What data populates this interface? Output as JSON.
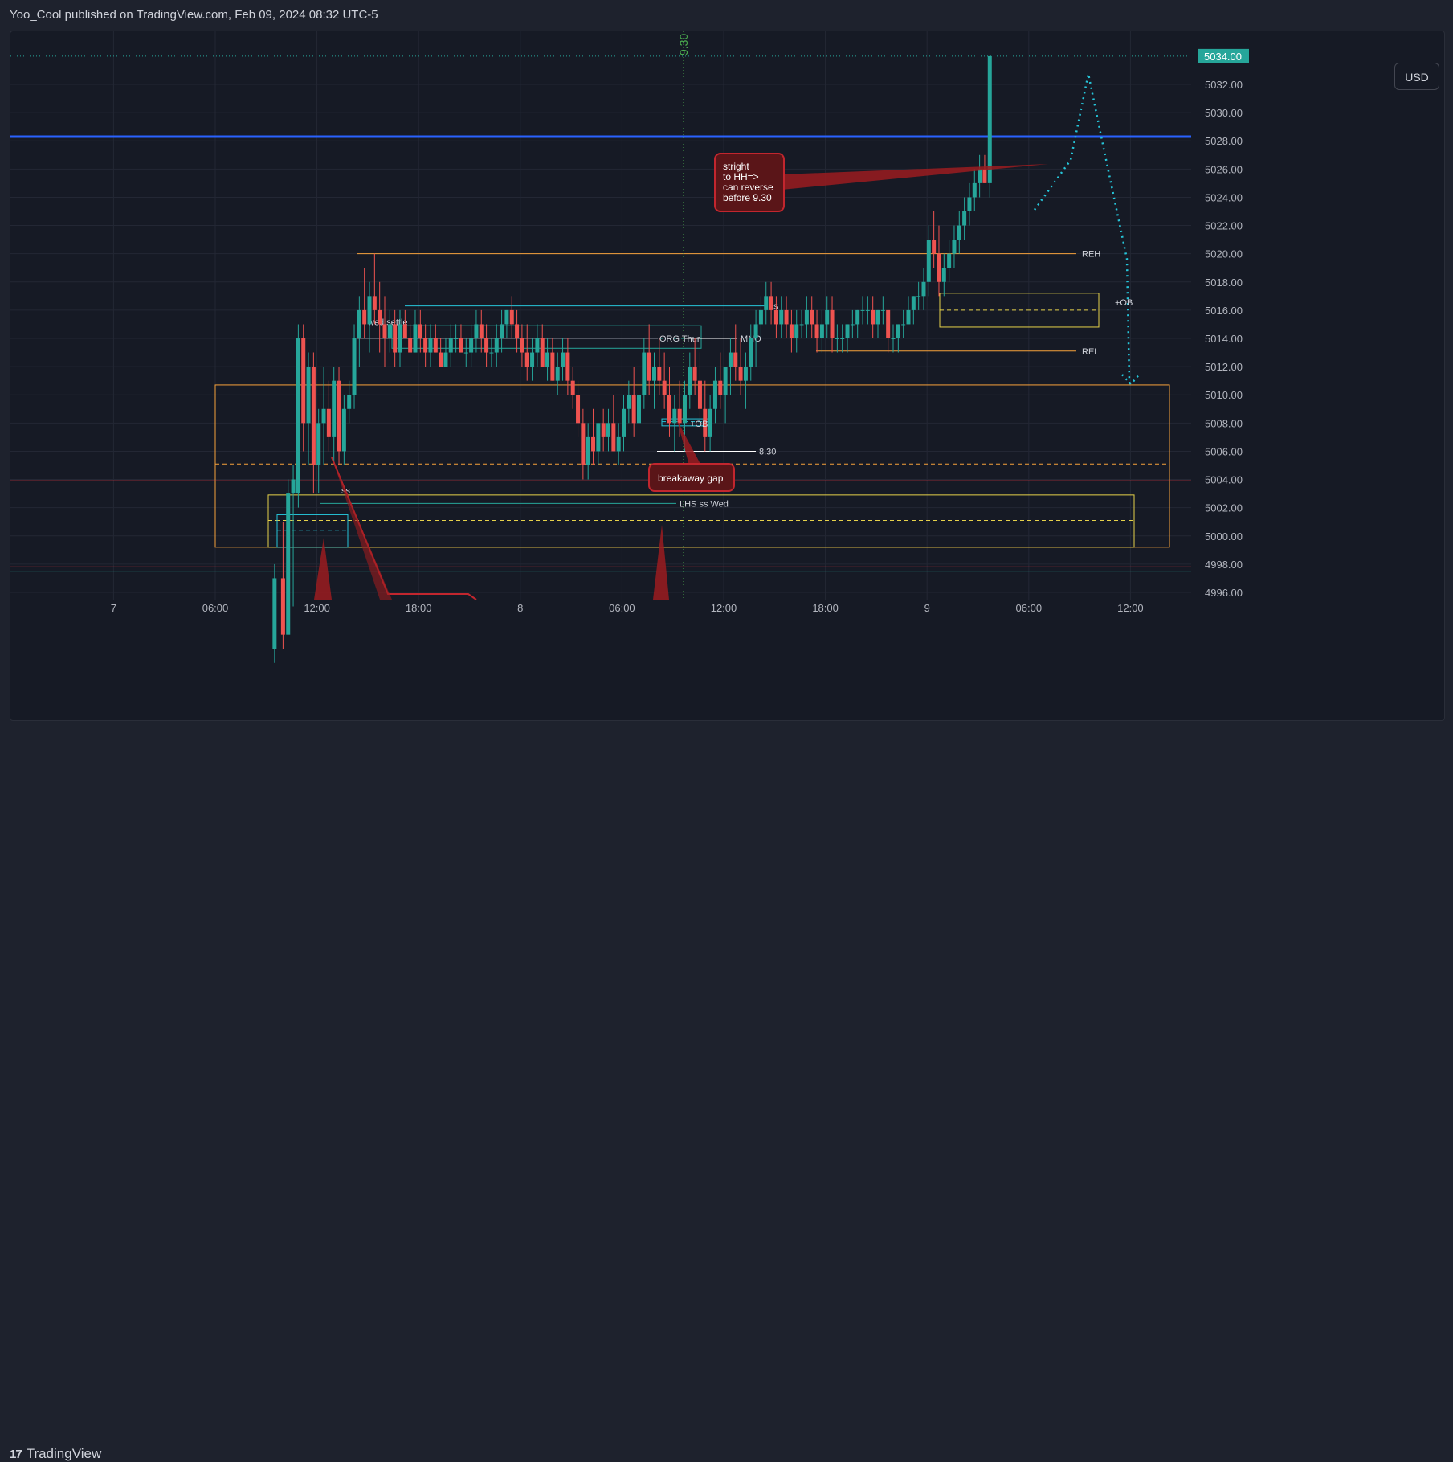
{
  "header": {
    "publisher_text": "Yoo_Cool published on TradingView.com, Feb 09, 2024 08:32 UTC-5"
  },
  "currency_button": "USD",
  "footer": {
    "brand": "TradingView",
    "logo_mark": "17"
  },
  "colors": {
    "up": "#26a69a",
    "down": "#ef5350",
    "blue_line": "#2962ff",
    "orange": "#f7a23b",
    "yellow": "#e6d24a",
    "cyan": "#26c6da",
    "red_line": "#f23645"
  },
  "chart_data": {
    "type": "candlestick",
    "symbol_hint": "",
    "y_axis": {
      "min": 4996,
      "max": 5034,
      "ticks": [
        "4996.00",
        "4998.00",
        "5000.00",
        "5002.00",
        "5004.00",
        "5006.00",
        "5008.00",
        "5010.00",
        "5012.00",
        "5014.00",
        "5016.00",
        "5018.00",
        "5020.00",
        "5022.00",
        "5024.00",
        "5026.00",
        "5028.00",
        "5030.00",
        "5032.00"
      ],
      "tick_values": [
        4996,
        4998,
        5000,
        5002,
        5004,
        5006,
        5008,
        5010,
        5012,
        5014,
        5016,
        5018,
        5020,
        5022,
        5024,
        5026,
        5028,
        5030,
        5032
      ],
      "last_price_label": "5034.00",
      "last_price": 5034
    },
    "x_axis": {
      "ticks": [
        "7",
        "06:00",
        "12:00",
        "18:00",
        "8",
        "06:00",
        "12:00",
        "18:00",
        "9",
        "06:00",
        "12:00"
      ],
      "tick_hours": [
        0,
        6,
        12,
        18,
        24,
        30,
        36,
        42,
        48,
        54,
        60
      ],
      "start_hour": -6,
      "end_hour": 63.3
    },
    "horizontal_lines": [
      {
        "name": "blue-level",
        "value": 5028.3,
        "color": "#2962ff",
        "style": "solid"
      },
      {
        "name": "red-level-upper",
        "value": 5003.9,
        "color": "#f23645",
        "style": "solid"
      },
      {
        "name": "red-level-lower",
        "value": 4997.8,
        "color": "#f23645",
        "style": "solid"
      },
      {
        "name": "green-level",
        "value": 4997.5,
        "color": "#26a69a",
        "style": "solid"
      },
      {
        "name": "last-price-dotted",
        "value": 5034,
        "color": "#26a69a",
        "style": "dotted"
      }
    ],
    "level_lines": [
      {
        "label": "REH",
        "value": 5020,
        "x_from": 8.0,
        "x_to": 57.2,
        "color": "#f7a23b"
      },
      {
        "label": "REL",
        "value": 5013.1,
        "x_from": 40.0,
        "x_to": 57.2,
        "color": "#f7a23b"
      },
      {
        "label": "bs",
        "value": 5016.3,
        "x_from": 17.8,
        "x_to": 35.0,
        "color": "#26c6da"
      },
      {
        "label": "MNO",
        "value": 5014,
        "x_from": 31.0,
        "x_to": 36.6,
        "color": "#ffffff"
      },
      {
        "label": "ORG Thur",
        "value": 5014,
        "x_from": 15.0,
        "x_to": 30.7,
        "color": "#8a8f9c"
      },
      {
        "label": "8.30",
        "value": 5006,
        "x_from": 32.6,
        "x_to": 37.9,
        "color": "#ffffff"
      },
      {
        "label": "LHS ss Wed",
        "value": 5002.3,
        "x_from": 11.3,
        "x_to": 31.3,
        "color": "#26a69a"
      },
      {
        "label": "wed settle",
        "value": 5014.6,
        "x_from": 16.6,
        "x_to": 35.1,
        "color": "#26a69a"
      },
      {
        "label": "ss",
        "value": 5002.9,
        "x_from": 11.9,
        "x_to": 12.1,
        "color": "#ffffff"
      }
    ],
    "zones": [
      {
        "name": "orange-zone",
        "top": 5010.7,
        "bottom": 4999.2,
        "x_from": 0.0,
        "x_to": 63.0,
        "color": "#f7a23b",
        "mid": 5005.1
      },
      {
        "name": "yellow-zone-big",
        "top": 5002.9,
        "bottom": 4999.2,
        "x_from": 3.0,
        "x_to": 61.0,
        "color": "#e6d24a",
        "mid": 5001.1
      },
      {
        "name": "yellow-zone-ob",
        "top": 5017.2,
        "bottom": 5014.8,
        "x_from": 50.5,
        "x_to": 59.5,
        "color": "#e6d24a",
        "mid": 5016.0
      },
      {
        "name": "cyan-zone-small",
        "top": 5001.5,
        "bottom": 4999.2,
        "x_from": 3.5,
        "x_to": 7.5,
        "color": "#26c6da",
        "mid": 5000.4
      },
      {
        "name": "cyan-zone-ob",
        "top": 5008.3,
        "bottom": 5007.8,
        "x_from": 32.9,
        "x_to": 34.9,
        "color": "#26c6da",
        "mid": 5008.1
      },
      {
        "name": "wed-settle-box",
        "top": 5014.9,
        "bottom": 5013.3,
        "x_from": 15.6,
        "x_to": 36.8,
        "color": "#26a69a",
        "mid": 5014.0
      }
    ],
    "annotations": [
      {
        "name": "stright-note",
        "text_lines": [
          "stright",
          "to HH=>",
          "can reverse",
          "before 9.30"
        ]
      },
      {
        "name": "breakaway-gap-note",
        "text_lines": [
          "breakaway gap"
        ]
      },
      {
        "name": "ob-label-1",
        "text_lines": [
          "+OB"
        ]
      },
      {
        "name": "ob-label-2",
        "text_lines": [
          "+OB"
        ]
      },
      {
        "name": "time-marker",
        "text_lines": [
          "9.30"
        ],
        "hour": 33.5
      }
    ],
    "projection_path": [
      [
        55.5,
        5024
      ],
      [
        57.1,
        5026
      ],
      [
        58.3,
        5032.8
      ],
      [
        59.8,
        5020
      ],
      [
        61.0,
        5011.2
      ],
      [
        61.3,
        5011.2
      ]
    ],
    "candles": [
      [
        9.5,
        4992,
        4998,
        4991,
        4997
      ],
      [
        10.0,
        4997,
        5001,
        4992,
        4993
      ],
      [
        10.3,
        4993,
        5004,
        4993,
        5003
      ],
      [
        10.6,
        5003,
        5005,
        4995,
        5004
      ],
      [
        10.9,
        5003,
        5015,
        5002,
        5014
      ],
      [
        11.2,
        5014,
        5015,
        5006,
        5008
      ],
      [
        11.5,
        5008,
        5013,
        5005,
        5012
      ],
      [
        11.8,
        5012,
        5013,
        5003,
        5005
      ],
      [
        12.1,
        5005,
        5009,
        5003,
        5008
      ],
      [
        12.4,
        5008,
        5012,
        5005,
        5009
      ],
      [
        12.7,
        5009,
        5011,
        5006,
        5007
      ],
      [
        13.0,
        5007,
        5012,
        5005,
        5011
      ],
      [
        13.3,
        5011,
        5012,
        5005,
        5006
      ],
      [
        13.6,
        5006,
        5010,
        5005,
        5009
      ],
      [
        13.9,
        5009,
        5011,
        5008,
        5010
      ],
      [
        14.2,
        5010,
        5015,
        5009,
        5014
      ],
      [
        14.5,
        5014,
        5017,
        5012,
        5016
      ],
      [
        14.8,
        5016,
        5019,
        5014,
        5015
      ],
      [
        15.1,
        5015,
        5018,
        5013,
        5017
      ],
      [
        15.4,
        5017,
        5020,
        5015,
        5016
      ],
      [
        15.7,
        5016,
        5018,
        5013,
        5015
      ],
      [
        16.0,
        5015,
        5017,
        5012,
        5014
      ],
      [
        16.3,
        5014,
        5016,
        5013,
        5015
      ],
      [
        16.6,
        5015,
        5016,
        5012,
        5013
      ],
      [
        16.9,
        5013,
        5016,
        5012,
        5015
      ],
      [
        17.2,
        5015,
        5016,
        5014,
        5014
      ],
      [
        17.5,
        5014,
        5015,
        5013,
        5013
      ],
      [
        17.8,
        5013,
        5016,
        5013,
        5015
      ],
      [
        18.1,
        5015,
        5016,
        5013,
        5014
      ],
      [
        18.4,
        5014,
        5015,
        5012,
        5013
      ],
      [
        18.7,
        5013,
        5015,
        5012,
        5014
      ],
      [
        19.0,
        5014,
        5015,
        5013,
        5013
      ],
      [
        19.3,
        5013,
        5014,
        5012,
        5012
      ],
      [
        19.6,
        5012,
        5014,
        5012,
        5013
      ],
      [
        19.9,
        5013,
        5015,
        5012,
        5014
      ],
      [
        20.2,
        5014,
        5015,
        5013,
        5014
      ],
      [
        20.5,
        5014,
        5015,
        5013,
        5013
      ],
      [
        20.8,
        5013,
        5014,
        5012,
        5013
      ],
      [
        21.1,
        5013,
        5015,
        5012,
        5014
      ],
      [
        21.4,
        5014,
        5016,
        5013,
        5015
      ],
      [
        21.7,
        5015,
        5016,
        5013,
        5014
      ],
      [
        22.0,
        5014,
        5015,
        5012,
        5013
      ],
      [
        22.3,
        5013,
        5014,
        5012,
        5013
      ],
      [
        22.6,
        5013,
        5015,
        5012,
        5014
      ],
      [
        22.9,
        5014,
        5016,
        5013,
        5015
      ],
      [
        23.2,
        5015,
        5016,
        5014,
        5016
      ],
      [
        23.5,
        5016,
        5017,
        5014,
        5015
      ],
      [
        23.8,
        5015,
        5016,
        5013,
        5014
      ],
      [
        24.1,
        5014,
        5015,
        5012,
        5013
      ],
      [
        24.4,
        5013,
        5015,
        5011,
        5012
      ],
      [
        24.7,
        5012,
        5014,
        5011,
        5013
      ],
      [
        25.0,
        5013,
        5015,
        5012,
        5014
      ],
      [
        25.3,
        5014,
        5015,
        5012,
        5012
      ],
      [
        25.6,
        5012,
        5014,
        5011,
        5013
      ],
      [
        25.9,
        5013,
        5014,
        5011,
        5011
      ],
      [
        26.2,
        5011,
        5013,
        5010,
        5012
      ],
      [
        26.5,
        5012,
        5014,
        5011,
        5013
      ],
      [
        26.8,
        5013,
        5014,
        5010,
        5011
      ],
      [
        27.1,
        5011,
        5012,
        5009,
        5010
      ],
      [
        27.4,
        5010,
        5011,
        5007,
        5008
      ],
      [
        27.7,
        5008,
        5009,
        5004,
        5005
      ],
      [
        28.0,
        5005,
        5008,
        5004,
        5007
      ],
      [
        28.3,
        5007,
        5009,
        5005,
        5006
      ],
      [
        28.6,
        5006,
        5008,
        5005,
        5008
      ],
      [
        28.9,
        5008,
        5009,
        5006,
        5007
      ],
      [
        29.2,
        5007,
        5009,
        5006,
        5008
      ],
      [
        29.5,
        5008,
        5010,
        5006,
        5006
      ],
      [
        29.8,
        5006,
        5008,
        5005,
        5007
      ],
      [
        30.1,
        5007,
        5010,
        5006,
        5009
      ],
      [
        30.4,
        5009,
        5011,
        5008,
        5010
      ],
      [
        30.7,
        5010,
        5012,
        5007,
        5008
      ],
      [
        31.0,
        5008,
        5011,
        5007,
        5010
      ],
      [
        31.3,
        5010,
        5014,
        5009,
        5013
      ],
      [
        31.6,
        5013,
        5015,
        5010,
        5011
      ],
      [
        31.9,
        5011,
        5013,
        5009,
        5012
      ],
      [
        32.2,
        5012,
        5014,
        5010,
        5011
      ],
      [
        32.5,
        5011,
        5013,
        5009,
        5010
      ],
      [
        32.8,
        5010,
        5012,
        5007,
        5008
      ],
      [
        33.1,
        5008,
        5010,
        5006,
        5009
      ],
      [
        33.4,
        5009,
        5011,
        5007,
        5008
      ],
      [
        33.7,
        5008,
        5011,
        5006,
        5010
      ],
      [
        34.0,
        5010,
        5013,
        5009,
        5012
      ],
      [
        34.3,
        5012,
        5014,
        5010,
        5011
      ],
      [
        34.6,
        5011,
        5013,
        5008,
        5009
      ],
      [
        34.9,
        5009,
        5011,
        5006,
        5007
      ],
      [
        35.2,
        5007,
        5010,
        5006,
        5009
      ],
      [
        35.5,
        5009,
        5012,
        5008,
        5011
      ],
      [
        35.8,
        5011,
        5013,
        5009,
        5010
      ],
      [
        36.1,
        5010,
        5012,
        5008,
        5012
      ],
      [
        36.4,
        5012,
        5014,
        5010,
        5013
      ],
      [
        36.7,
        5013,
        5015,
        5011,
        5012
      ],
      [
        37.0,
        5012,
        5014,
        5010,
        5011
      ],
      [
        37.3,
        5011,
        5013,
        5009,
        5012
      ],
      [
        37.6,
        5012,
        5015,
        5011,
        5014
      ],
      [
        37.9,
        5014,
        5016,
        5012,
        5015
      ],
      [
        38.2,
        5015,
        5017,
        5014,
        5016
      ],
      [
        38.5,
        5016,
        5018,
        5015,
        5017
      ],
      [
        38.8,
        5017,
        5018,
        5015,
        5016
      ],
      [
        39.1,
        5016,
        5017,
        5014,
        5015
      ],
      [
        39.4,
        5015,
        5017,
        5014,
        5016
      ],
      [
        39.7,
        5016,
        5017,
        5014,
        5015
      ],
      [
        40.0,
        5015,
        5016,
        5013,
        5014
      ],
      [
        40.3,
        5014,
        5016,
        5013,
        5015
      ],
      [
        40.6,
        5015,
        5016,
        5014,
        5015
      ],
      [
        40.9,
        5015,
        5017,
        5014,
        5016
      ],
      [
        41.2,
        5016,
        5017,
        5014,
        5015
      ],
      [
        41.5,
        5015,
        5016,
        5013,
        5014
      ],
      [
        41.8,
        5014,
        5016,
        5013,
        5015
      ],
      [
        42.1,
        5015,
        5017,
        5014,
        5016
      ],
      [
        42.4,
        5016,
        5017,
        5013,
        5014
      ],
      [
        42.7,
        5014,
        5015,
        5013,
        5014
      ],
      [
        43.0,
        5014,
        5015,
        5013,
        5014
      ],
      [
        43.3,
        5014,
        5015,
        5013,
        5015
      ],
      [
        43.6,
        5015,
        5016,
        5014,
        5015
      ],
      [
        43.9,
        5015,
        5016,
        5014,
        5016
      ],
      [
        44.2,
        5016,
        5017,
        5015,
        5016
      ],
      [
        44.5,
        5016,
        5017,
        5015,
        5016
      ],
      [
        44.8,
        5016,
        5017,
        5014,
        5015
      ],
      [
        45.1,
        5015,
        5016,
        5014,
        5016
      ],
      [
        45.4,
        5016,
        5017,
        5015,
        5016
      ],
      [
        45.7,
        5016,
        5016,
        5013,
        5014
      ],
      [
        46.0,
        5014,
        5015,
        5013,
        5014
      ],
      [
        46.3,
        5014,
        5015,
        5013,
        5015
      ],
      [
        46.6,
        5015,
        5016,
        5014,
        5015
      ],
      [
        46.9,
        5015,
        5017,
        5015,
        5016
      ],
      [
        47.2,
        5016,
        5017,
        5015,
        5017
      ],
      [
        47.5,
        5017,
        5018,
        5016,
        5017
      ],
      [
        47.8,
        5017,
        5019,
        5016,
        5018
      ],
      [
        48.1,
        5018,
        5022,
        5017,
        5021
      ],
      [
        48.4,
        5021,
        5023,
        5019,
        5020
      ],
      [
        48.7,
        5020,
        5022,
        5017,
        5018
      ],
      [
        49.0,
        5018,
        5020,
        5017,
        5019
      ],
      [
        49.3,
        5019,
        5021,
        5018,
        5020
      ],
      [
        49.6,
        5020,
        5022,
        5019,
        5021
      ],
      [
        49.9,
        5021,
        5023,
        5020,
        5022
      ],
      [
        50.2,
        5022,
        5024,
        5021,
        5023
      ],
      [
        50.5,
        5023,
        5025,
        5022,
        5024
      ],
      [
        50.8,
        5024,
        5026,
        5023,
        5025
      ],
      [
        51.1,
        5025,
        5027,
        5024,
        5026
      ],
      [
        51.4,
        5026,
        5027,
        5025,
        5025
      ],
      [
        51.7,
        5025,
        5034,
        5024,
        5034
      ]
    ]
  }
}
